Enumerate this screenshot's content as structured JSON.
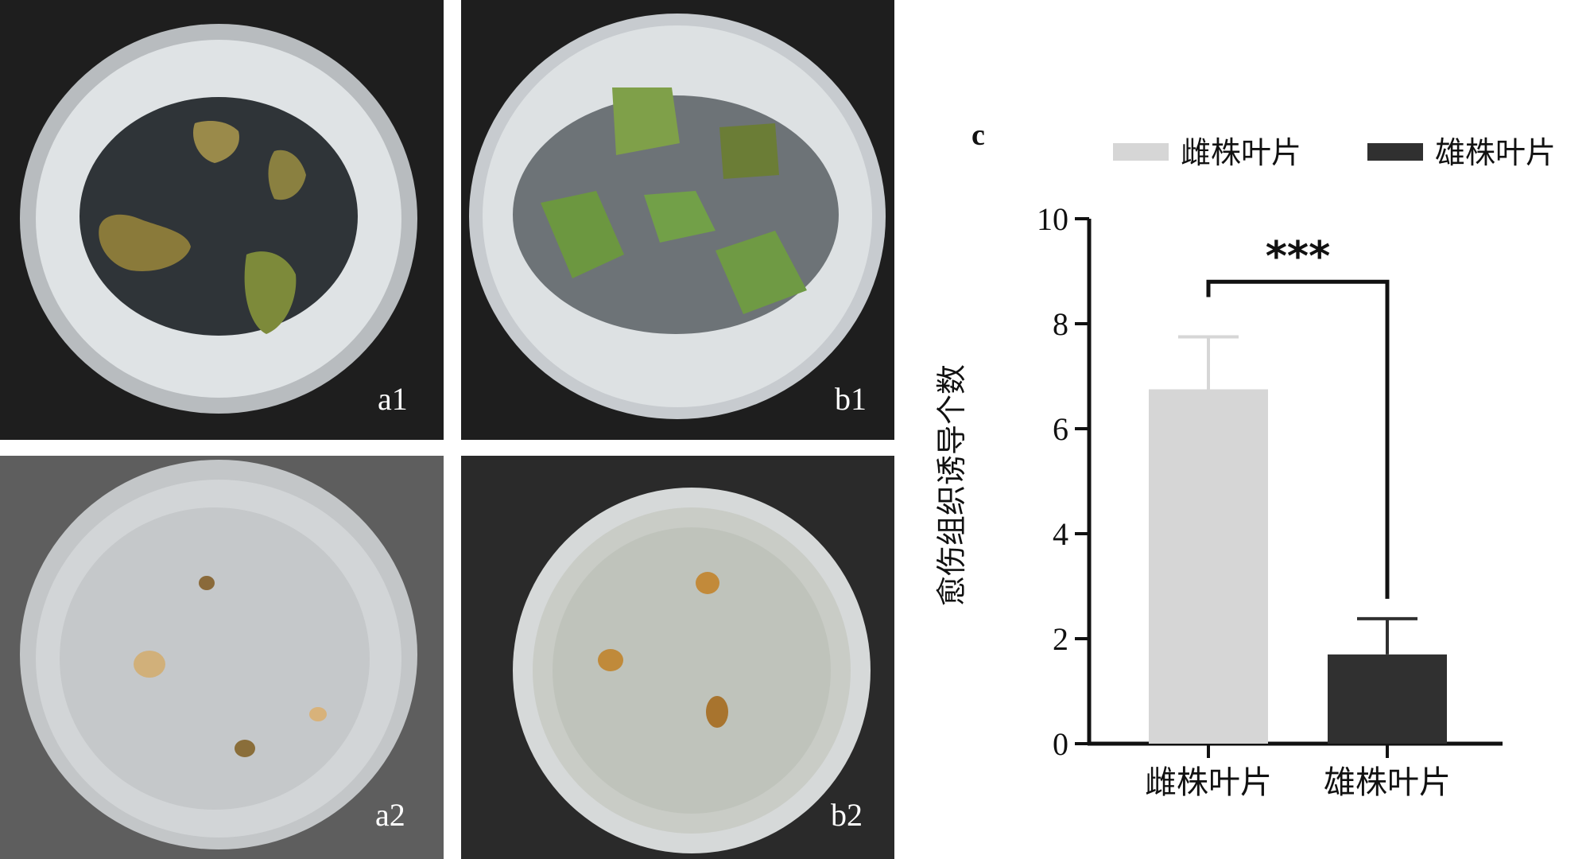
{
  "panels": {
    "a1": "a1",
    "b1": "b1",
    "a2": "a2",
    "b2": "b2",
    "c": "c"
  },
  "colors": {
    "female": "#d6d6d6",
    "male": "#303030",
    "dark_background": "#1e1e1e",
    "grey_background": "#5f5f5f"
  },
  "chart_data": {
    "type": "bar",
    "categories": [
      "雌株叶片",
      "雄株叶片"
    ],
    "series": [
      {
        "name": "雌株叶片",
        "values": [
          6.75,
          null
        ],
        "error": [
          1.0,
          null
        ],
        "color": "#d6d6d6"
      },
      {
        "name": "雄株叶片",
        "values": [
          null,
          1.7
        ],
        "error": [
          null,
          0.68
        ],
        "color": "#303030"
      }
    ],
    "values": [
      6.75,
      1.7
    ],
    "errors": [
      1.0,
      0.68
    ],
    "ylabel": "愈伤组织诱导个数",
    "xlabel": "",
    "title": "",
    "ylim": [
      0,
      10
    ],
    "yticks": [
      "0",
      "2",
      "4",
      "6",
      "8",
      "10"
    ],
    "legend": [
      "雌株叶片",
      "雄株叶片"
    ],
    "legend_position": "top",
    "significance": "***",
    "grid": false
  }
}
